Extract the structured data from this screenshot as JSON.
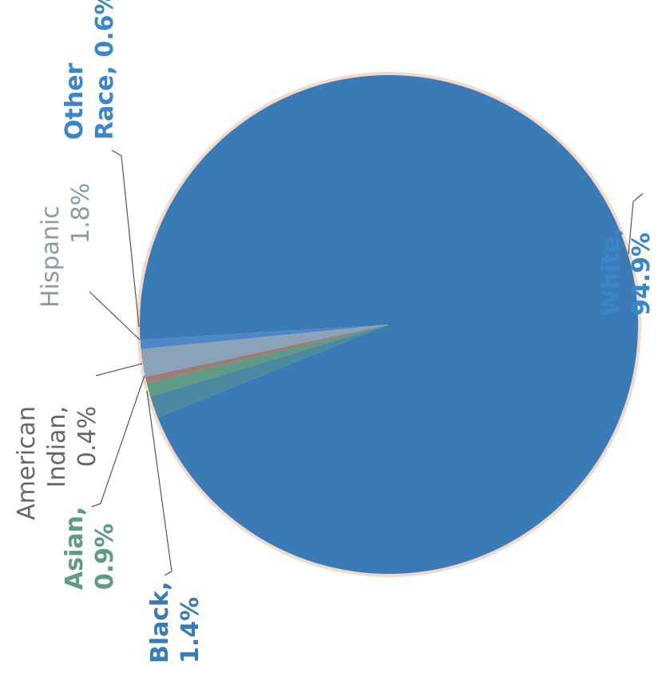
{
  "chart_data": {
    "type": "pie",
    "title": "",
    "slices": [
      {
        "label": "White",
        "value": 94.9,
        "display": "94.9%",
        "color": "#3a7ab5"
      },
      {
        "label": "Other Race",
        "value": 0.6,
        "display": "0.6%",
        "color": "#4f86c8"
      },
      {
        "label": "Hispanic",
        "value": 1.8,
        "display": "1.8%",
        "color": "#8aa3b8"
      },
      {
        "label": "American Indian",
        "value": 0.4,
        "display": "0.4%",
        "color": "#a07a74"
      },
      {
        "label": "Asian",
        "value": 0.9,
        "display": "0.9%",
        "color": "#5f9a86"
      },
      {
        "label": "Black",
        "value": 1.4,
        "display": "1.4%",
        "color": "#4c8aa4"
      }
    ]
  },
  "labels": {
    "white_line1": "White,",
    "white_line2": "94.9%",
    "other_line1": "Other",
    "other_line2": "Race, 0.6%",
    "hispanic_line1": "Hispanic",
    "hispanic_line2": "1.8%",
    "amind_line1": "American",
    "amind_line2": "Indian,",
    "amind_line3": "0.4%",
    "asian_line1": "Asian,",
    "asian_line2": "0.9%",
    "black_line1": "Black,",
    "black_line2": "1.4%"
  },
  "colors": {
    "white_label": "#3a86c8",
    "other_label": "#3a86c8",
    "hispanic_label": "#8a9aa6",
    "amind_label": "#666666",
    "asian_label": "#5f9a86",
    "black_label": "#3a7ab5",
    "leader": "#555555",
    "halo": "#f3d8cc"
  }
}
